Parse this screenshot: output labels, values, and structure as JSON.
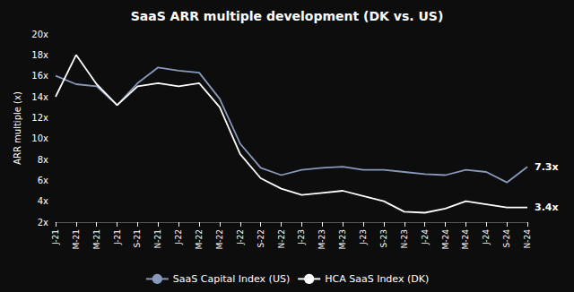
{
  "chart_data": {
    "type": "line",
    "title": "SaaS ARR multiple development (DK vs. US)",
    "y_label": "ARR multiple (x)",
    "background_color": "#0d0d0d",
    "text_color": "#ffffff",
    "categories": [
      "J-21",
      "M-21",
      "M-21",
      "J-21",
      "S-21",
      "N-21",
      "J-22",
      "M-22",
      "M-22",
      "J-22",
      "S-22",
      "N-22",
      "J-23",
      "M-23",
      "M-23",
      "J-23",
      "S-23",
      "N-23",
      "J-24",
      "M-24",
      "M-24",
      "J-24",
      "S-24",
      "N-24"
    ],
    "series": [
      {
        "name": "SaaS Capital Index (US)",
        "color": "#8899bb",
        "end_label": "7.3x",
        "values": [
          16.0,
          15.2,
          15.0,
          13.2,
          15.3,
          16.8,
          16.5,
          16.3,
          13.8,
          9.5,
          7.2,
          6.5,
          7.0,
          7.2,
          7.3,
          7.0,
          7.0,
          6.8,
          6.6,
          6.5,
          7.0,
          6.8,
          5.8,
          7.3
        ]
      },
      {
        "name": "HCA SaaS Index (DK)",
        "color": "#ffffff",
        "end_label": "3.4x",
        "values": [
          14.0,
          18.0,
          15.2,
          13.2,
          15.0,
          15.3,
          15.0,
          15.3,
          13.0,
          8.5,
          6.2,
          5.2,
          4.6,
          4.8,
          5.0,
          4.5,
          4.0,
          3.0,
          2.9,
          3.3,
          4.0,
          3.7,
          3.4,
          3.4
        ]
      }
    ],
    "ylim": [
      2,
      20
    ],
    "yticks": [
      {
        "value": 2,
        "label": "2x"
      },
      {
        "value": 4,
        "label": "4x"
      },
      {
        "value": 6,
        "label": "6x"
      },
      {
        "value": 8,
        "label": "8x"
      },
      {
        "value": 10,
        "label": "10x"
      },
      {
        "value": 12,
        "label": "12x"
      },
      {
        "value": 14,
        "label": "14x"
      },
      {
        "value": 16,
        "label": "16x"
      },
      {
        "value": 18,
        "label": "18x"
      },
      {
        "value": 20,
        "label": "20x"
      }
    ],
    "grid": false,
    "legend": "bottom"
  }
}
